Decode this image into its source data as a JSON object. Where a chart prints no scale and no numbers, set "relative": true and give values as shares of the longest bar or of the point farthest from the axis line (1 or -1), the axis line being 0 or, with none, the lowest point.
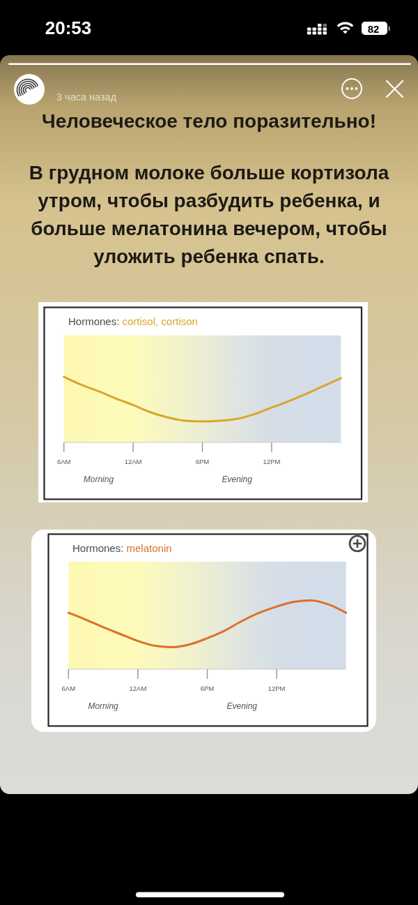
{
  "chart_data": [
    {
      "type": "other",
      "title": "Человеческое тело поразительно!",
      "subtitle": "В грудном молоке больше кортизола утром, чтобы разбудить ребенка, и больше мелатонина вечером, чтобы уложить ребенка спать.",
      "annotations": [
        "20:53",
        "82",
        "3 часа назад"
      ]
    },
    {
      "type": "line",
      "title": "Hormones: cortisol, cortison",
      "categories": [
        "6AM",
        null,
        null,
        null,
        "12AM",
        null,
        null,
        null,
        "6PM",
        null,
        null,
        null,
        "12PM",
        null,
        null,
        null,
        null
      ],
      "relative": true,
      "tick_labels": "x",
      "series": [
        {
          "color": "#d9a62a",
          "values": [
            1,
            0.88,
            0.78,
            0.67,
            0.57,
            0.46,
            0.38,
            0.33,
            0.32,
            0.33,
            0.36,
            0.43,
            0.53,
            0.63,
            0.74,
            0.86,
            0.98
          ]
        }
      ],
      "annotations": [
        "Morning",
        "Evening"
      ]
    },
    {
      "type": "line",
      "title": "Hormones: melatonin",
      "categories": [
        "6AM",
        null,
        null,
        null,
        "12AM",
        null,
        null,
        null,
        "6PM",
        null,
        null,
        null,
        "12PM",
        null,
        null,
        null,
        null
      ],
      "relative": true,
      "tick_labels": "x",
      "series": [
        {
          "color": "#dd6f2c",
          "values": [
            0.82,
            0.72,
            0.61,
            0.51,
            0.41,
            0.34,
            0.32,
            0.36,
            0.45,
            0.56,
            0.7,
            0.82,
            0.91,
            0.98,
            1,
            0.94,
            0.82
          ]
        }
      ],
      "annotations": [
        "Morning",
        "Evening"
      ]
    }
  ]
}
